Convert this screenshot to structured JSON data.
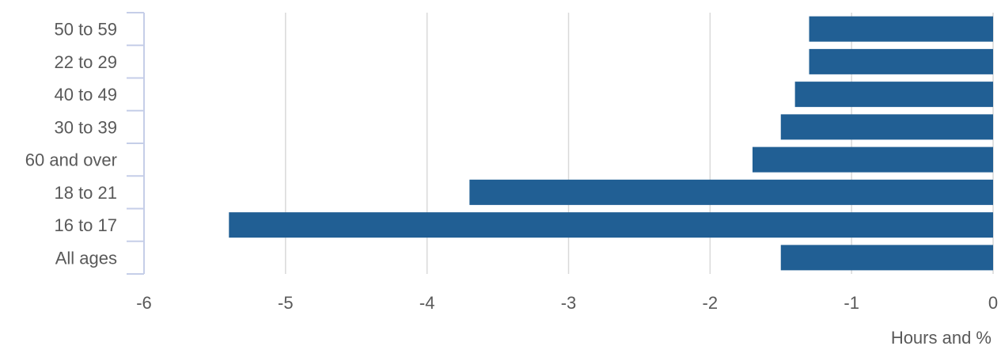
{
  "chart_data": {
    "type": "bar",
    "orientation": "horizontal",
    "categories": [
      "50 to 59",
      "22 to 29",
      "40 to 49",
      "30 to 39",
      "60 and over",
      "18 to 21",
      "16 to 17",
      "All ages"
    ],
    "values": [
      -1.3,
      -1.3,
      -1.4,
      -1.5,
      -1.7,
      -3.7,
      -5.4,
      -1.5
    ],
    "xlabel": "Hours and %",
    "xlim": [
      -6,
      0
    ],
    "xticks": [
      -6,
      -5,
      -4,
      -3,
      -2,
      -1,
      0
    ],
    "grid": "vertical",
    "bar_color": "#215f94"
  }
}
